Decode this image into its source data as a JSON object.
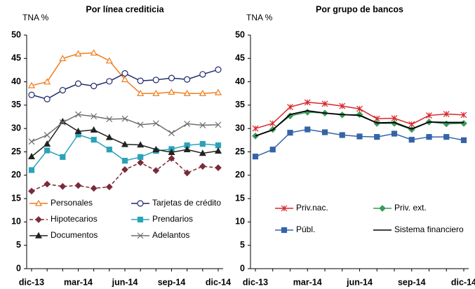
{
  "chart_data": [
    {
      "type": "line",
      "title": "Por línea crediticia",
      "y_label": "TNA %",
      "categories": [
        "dic-13",
        null,
        null,
        "mar-14",
        null,
        null,
        "jun-14",
        null,
        null,
        "sep-14",
        null,
        null,
        "dic-14"
      ],
      "ylim": [
        0,
        50
      ],
      "yticks": [
        0,
        5,
        10,
        15,
        20,
        25,
        30,
        35,
        40,
        45,
        50
      ],
      "grid": false,
      "legend": "bottom",
      "series": [
        {
          "name": "Personales",
          "color": "#f07d1e",
          "marker": "triangle-open",
          "values": [
            39.2,
            40,
            45,
            46,
            46.2,
            44.5,
            40.5,
            37.5,
            37.5,
            37.8,
            37.5,
            37.5,
            37.7
          ]
        },
        {
          "name": "Tarjetas de crédito",
          "color": "#1f2a6b",
          "marker": "circle-open",
          "values": [
            37.2,
            36.3,
            38.2,
            39.6,
            39.1,
            40.1,
            41.8,
            40.2,
            40.4,
            40.8,
            40.5,
            41.6,
            42.6
          ]
        },
        {
          "name": "Hipotecarios",
          "color": "#7b2a3a",
          "marker": "diamond",
          "line_style": "dashed",
          "values": [
            16.6,
            18.1,
            17.6,
            17.8,
            17.2,
            17.5,
            21.2,
            22.7,
            21,
            23.6,
            20.5,
            21.9,
            21.6
          ]
        },
        {
          "name": "Prendarios",
          "color": "#2aa3b8",
          "marker": "square",
          "values": [
            21.1,
            25.3,
            23.9,
            28.7,
            27.6,
            25.5,
            23.1,
            23.9,
            25.2,
            25.6,
            26.4,
            26.7,
            26.4
          ]
        },
        {
          "name": "Documentos",
          "color": "#222222",
          "marker": "triangle",
          "values": [
            24,
            26.7,
            31.5,
            29.4,
            29.7,
            28.1,
            26.6,
            26.5,
            25.5,
            24.9,
            25.5,
            24.7,
            25.2
          ]
        },
        {
          "name": "Adelantos",
          "color": "#6e6e6e",
          "marker": "x",
          "values": [
            27.2,
            28.6,
            31.3,
            33,
            32.6,
            32,
            32.1,
            30.8,
            31.1,
            29,
            31,
            30.7,
            30.8
          ]
        }
      ]
    },
    {
      "type": "line",
      "title": "Por grupo de bancos",
      "y_label": "TNA %",
      "categories": [
        "dic-13",
        null,
        null,
        "mar-14",
        null,
        null,
        "jun-14",
        null,
        null,
        "sep-14",
        null,
        null,
        "dic-14"
      ],
      "ylim": [
        0,
        50
      ],
      "yticks": [
        0,
        5,
        10,
        15,
        20,
        25,
        30,
        35,
        40,
        45,
        50
      ],
      "grid": false,
      "legend": "bottom",
      "series": [
        {
          "name": "Priv.nac.",
          "color": "#d9252a",
          "marker": "asterisk",
          "values": [
            30,
            31.1,
            34.6,
            35.6,
            35.3,
            34.8,
            34.2,
            32.1,
            32.2,
            30.9,
            32.8,
            33.1,
            32.9
          ]
        },
        {
          "name": "Priv. ext.",
          "color": "#3a9a5b",
          "marker": "diamond",
          "values": [
            28.4,
            29.8,
            32.7,
            33.5,
            33.3,
            32.9,
            33,
            31.1,
            31.1,
            29.8,
            31.4,
            31,
            31.1
          ]
        },
        {
          "name": "Públ.",
          "color": "#3563a8",
          "marker": "square",
          "values": [
            24,
            25.5,
            29.1,
            29.8,
            29.2,
            28.6,
            28.3,
            28.2,
            28.9,
            27.6,
            28.2,
            28.2,
            27.5
          ]
        },
        {
          "name": "Sistema financiero",
          "color": "#000000",
          "marker": "none",
          "values": [
            28.4,
            29.7,
            33,
            33.8,
            33.3,
            33,
            32.8,
            31.2,
            31.3,
            29.9,
            31.4,
            31.3,
            31.3
          ]
        }
      ]
    }
  ]
}
